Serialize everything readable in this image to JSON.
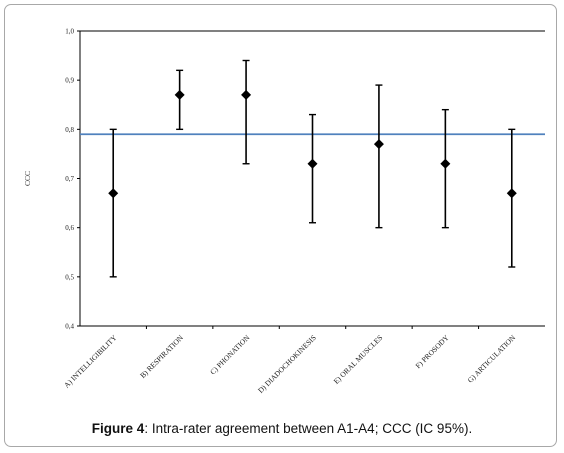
{
  "chart_data": {
    "type": "scatter",
    "title": "",
    "xlabel": "",
    "ylabel": "CCC",
    "ylim": [
      0.4,
      1.0
    ],
    "yticks": [
      "0,4",
      "0,5",
      "0,6",
      "0,7",
      "0,8",
      "0,9",
      "1,0"
    ],
    "categories": [
      "A) INTELLIGIBILITY",
      "B) RESPIRATION",
      "C) PHONATION",
      "D) DIADOCHOKINESIS",
      "E) ORAL MUSCLES",
      "F) PROSODY",
      "G) ARTICULATION"
    ],
    "series": [
      {
        "values": [
          0.67,
          0.87,
          0.87,
          0.73,
          0.77,
          0.73,
          0.67
        ],
        "lower": [
          0.5,
          0.8,
          0.73,
          0.61,
          0.6,
          0.6,
          0.52
        ],
        "upper": [
          0.8,
          0.92,
          0.94,
          0.83,
          0.89,
          0.84,
          0.8
        ]
      }
    ],
    "reference_line": 0.79,
    "reference_line_color": "#4f81bd",
    "marker_color": "#000000",
    "grid": false
  },
  "caption": {
    "label": "Figure 4",
    "text": ": Intra-rater agreement between A1-A4; CCC (IC 95%)."
  }
}
